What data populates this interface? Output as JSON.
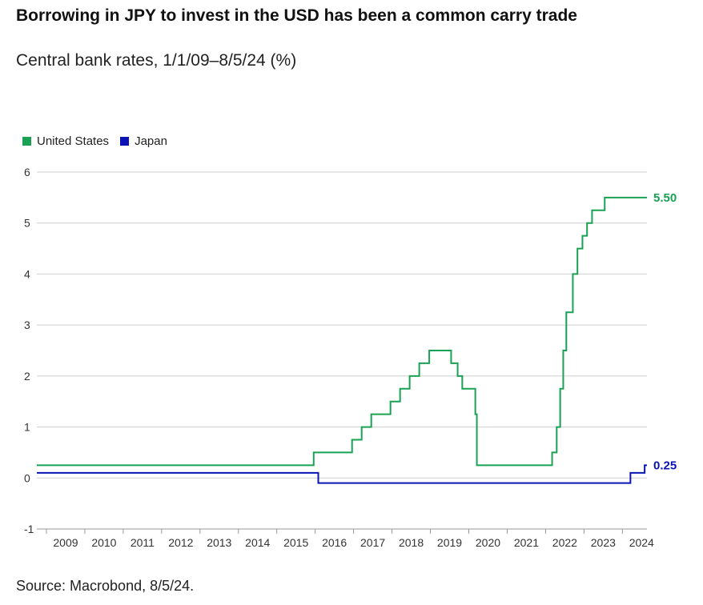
{
  "header": {
    "title": "Borrowing in JPY to invest in the USD has been a common carry trade",
    "subtitle": "Central bank rates, 1/1/09–8/5/24 (%)"
  },
  "footer": {
    "source": "Source: Macrobond, 8/5/24."
  },
  "legend": [
    {
      "label": "United States",
      "color": "#1aa153"
    },
    {
      "label": "Japan",
      "color": "#0a14b4"
    }
  ],
  "chart_data": {
    "type": "line",
    "title": "Borrowing in JPY to invest in the USD has been a common carry trade",
    "subtitle": "Central bank rates, 1/1/09–8/5/24 (%)",
    "xlabel": "",
    "ylabel": "",
    "xlim": [
      2008.75,
      2024.64
    ],
    "ylim": [
      -1,
      6
    ],
    "yticks": [
      "-1",
      "0",
      "1",
      "2",
      "3",
      "4",
      "5",
      "6"
    ],
    "xticks": [
      "2009",
      "2010",
      "2011",
      "2012",
      "2013",
      "2014",
      "2015",
      "2016",
      "2017",
      "2018",
      "2019",
      "2020",
      "2021",
      "2022",
      "2023",
      "2024"
    ],
    "grid": true,
    "legend_position": "top-left",
    "series": [
      {
        "name": "United States",
        "color": "#1aa153",
        "end_label": "5.50",
        "x": [
          2008.75,
          2015.96,
          2016.96,
          2017.21,
          2017.46,
          2017.96,
          2018.21,
          2018.46,
          2018.71,
          2018.97,
          2019.54,
          2019.71,
          2019.83,
          2020.17,
          2020.21,
          2022.17,
          2022.29,
          2022.38,
          2022.46,
          2022.54,
          2022.71,
          2022.83,
          2022.96,
          2023.08,
          2023.21,
          2023.54,
          2024.64
        ],
        "y": [
          0.25,
          0.5,
          0.75,
          1.0,
          1.25,
          1.5,
          1.75,
          2.0,
          2.25,
          2.5,
          2.25,
          2.0,
          1.75,
          1.25,
          0.25,
          0.5,
          1.0,
          1.75,
          2.5,
          3.25,
          4.0,
          4.5,
          4.75,
          5.0,
          5.25,
          5.5,
          5.5
        ]
      },
      {
        "name": "Japan",
        "color": "#0a14b4",
        "end_label": "0.25",
        "x": [
          2008.75,
          2016.08,
          2024.21,
          2024.58,
          2024.64
        ],
        "y": [
          0.1,
          -0.1,
          0.1,
          0.25,
          0.25
        ]
      }
    ]
  }
}
